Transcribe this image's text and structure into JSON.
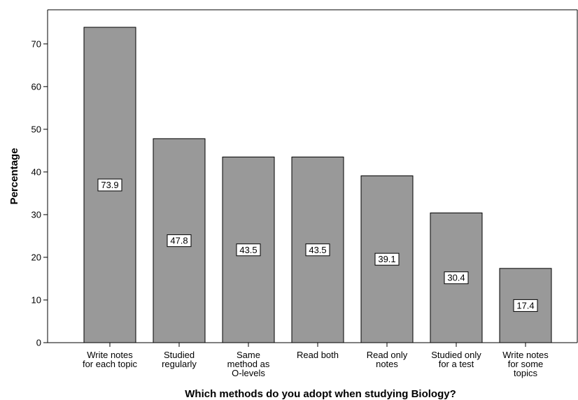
{
  "chart_data": {
    "type": "bar",
    "xlabel": "Which methods do you adopt when studying Biology?",
    "ylabel": "Percentage",
    "ylim": [
      0,
      78
    ],
    "yticks": [
      0,
      10,
      20,
      30,
      40,
      50,
      60,
      70
    ],
    "grid": false,
    "categories": [
      [
        "Write notes",
        "for each topic"
      ],
      [
        "Studied",
        "regularly"
      ],
      [
        "Same",
        "method as",
        "O-levels"
      ],
      [
        "Read both"
      ],
      [
        "Read only",
        "notes"
      ],
      [
        "Studied only",
        "for a test"
      ],
      [
        "Write notes",
        "for some",
        "topics"
      ]
    ],
    "values": [
      73.9,
      47.8,
      43.5,
      43.5,
      39.1,
      30.4,
      17.4
    ],
    "data_labels": [
      "73.9",
      "47.8",
      "43.5",
      "43.5",
      "39.1",
      "30.4",
      "17.4"
    ],
    "bar_color": "#999999",
    "bar_edge_color": "#000000"
  }
}
